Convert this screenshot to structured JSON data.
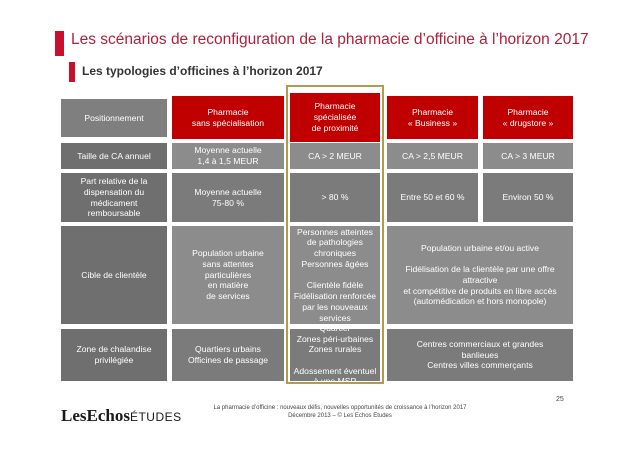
{
  "title": "Les scénarios de reconfiguration de la pharmacie d’officine à l’horizon 2017",
  "subtitle": "Les typologies d’officines à l’horizon 2017",
  "headers": {
    "positionnement": "Positionnement",
    "sans_specialisation": "Pharmacie\nsans spécialisation",
    "proximite": "Pharmacie\nspécialisée\nde proximité",
    "business": "Pharmacie\n« Business »",
    "drugstore": "Pharmacie\n« drugstore »"
  },
  "rows": {
    "taille": {
      "label": "Taille de CA annuel",
      "sans_specialisation": "Moyenne actuelle\n1,4 à 1,5 MEUR",
      "proximite": "CA > 2 MEUR",
      "business": "CA > 2,5 MEUR",
      "drugstore": "CA > 3 MEUR"
    },
    "part": {
      "label": "Part relative de la\ndispensation du\nmédicament\nremboursable",
      "sans_specialisation": "Moyenne actuelle\n75-80 %",
      "proximite": "> 80 %",
      "business": "Entre 50 et 60 %",
      "drugstore": "Environ 50 %"
    },
    "cible": {
      "label": "Cible de clientèle",
      "sans_specialisation": "Population urbaine\nsans attentes\nparticulières\nen matière\nde services",
      "proximite": "Personnes atteintes\nde pathologies\nchroniques\nPersonnes âgées\n\nClientèle fidèle\nFidélisation renforcée\npar les nouveaux\nservices",
      "business_drugstore": "Population urbaine et/ou active\n\nFidélisation de la clientèle par une offre\nattractive\net compétitive de produits en libre accès\n(automédication et hors monopole)"
    },
    "zone": {
      "label": "Zone de chalandise\nprivilégiée",
      "sans_specialisation": "Quartiers urbains\nOfficines de passage",
      "proximite": "Quartier\nZones péri-urbaines\nZones rurales\n\nAdossement éventuel\nà une MSP",
      "business_drugstore": "Centres commerciaux et grandes\nbanlieues\nCentres villes commerçants"
    }
  },
  "footer": {
    "logo_les": "LesEchos",
    "logo_etudes": "ÉTUDES",
    "note": "La pharmacie d’officine : nouveaux défis, nouvelles opportunités de croissance à l’horizon 2017\nDécembre 2013 – © Les Echos Etudes",
    "page_number": "25"
  },
  "colors": {
    "accent_red": "#c00000",
    "header_grey": "#7f7f7f",
    "highlight_gold": "#b59a4e"
  }
}
